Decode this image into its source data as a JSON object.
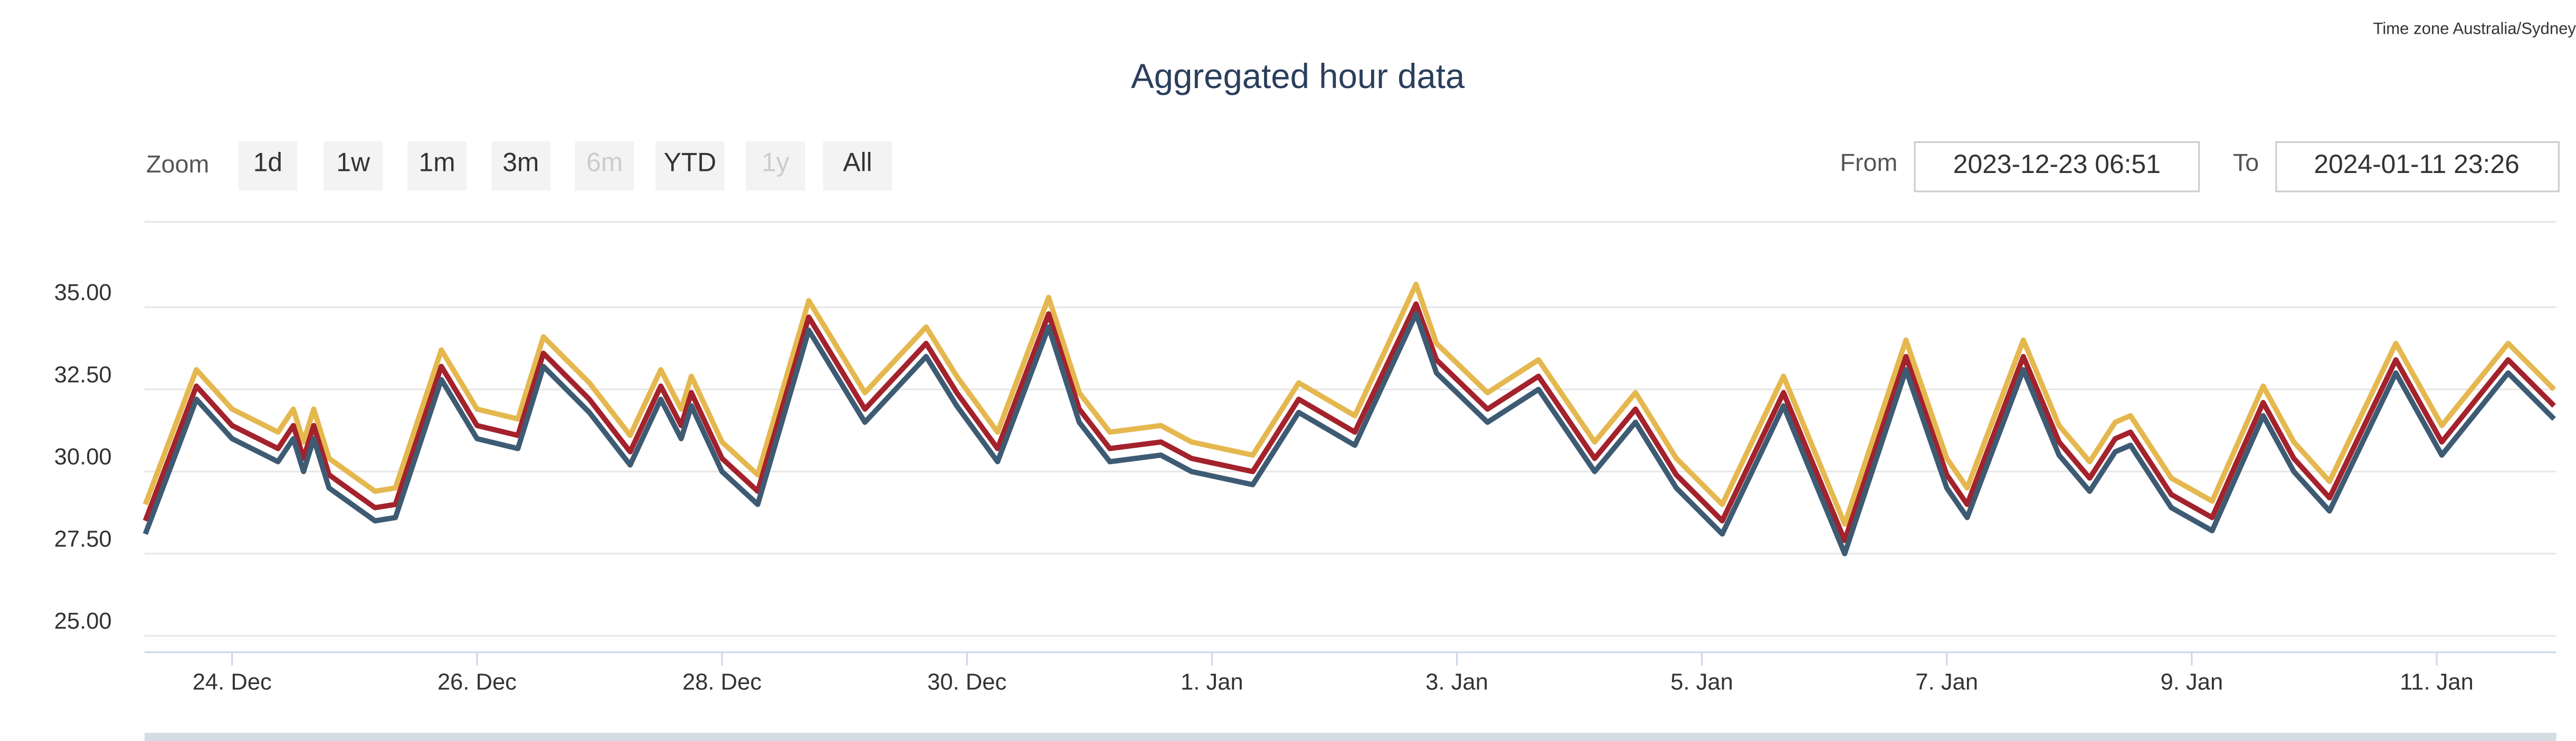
{
  "chart_data": {
    "type": "line",
    "timezone": "Time zone Australia/Sydney",
    "title": "Aggregated hour data",
    "zoom_label": "Zoom",
    "zoom_buttons": [
      {
        "label": "1d",
        "enabled": true
      },
      {
        "label": "1w",
        "enabled": true
      },
      {
        "label": "1m",
        "enabled": true
      },
      {
        "label": "3m",
        "enabled": true
      },
      {
        "label": "6m",
        "enabled": false
      },
      {
        "label": "YTD",
        "enabled": true
      },
      {
        "label": "1y",
        "enabled": false
      },
      {
        "label": "All",
        "enabled": true
      }
    ],
    "from_label": "From",
    "from_value": "2023-12-23 06:51",
    "to_label": "To",
    "to_value": "2024-01-11 23:26",
    "x": [
      "2023-12-23 07:00",
      "2023-12-23 17:00",
      "2023-12-24 00:00",
      "2023-12-24 09:00",
      "2023-12-24 12:00",
      "2023-12-24 14:00",
      "2023-12-24 16:00",
      "2023-12-24 19:00",
      "2023-12-25 04:00",
      "2023-12-25 08:00",
      "2023-12-25 17:00",
      "2023-12-26 00:00",
      "2023-12-26 08:00",
      "2023-12-26 13:00",
      "2023-12-26 22:00",
      "2023-12-27 06:00",
      "2023-12-27 12:00",
      "2023-12-27 16:00",
      "2023-12-27 18:00",
      "2023-12-28 00:00",
      "2023-12-28 07:00",
      "2023-12-28 17:00",
      "2023-12-29 04:00",
      "2023-12-29 16:00",
      "2023-12-29 22:00",
      "2023-12-30 06:00",
      "2023-12-30 16:00",
      "2023-12-30 22:00",
      "2023-12-31 04:00",
      "2023-12-31 14:00",
      "2023-12-31 20:00",
      "2024-01-01 08:00",
      "2024-01-01 17:00",
      "2024-01-02 04:00",
      "2024-01-02 16:00",
      "2024-01-02 20:00",
      "2024-01-03 06:00",
      "2024-01-03 16:00",
      "2024-01-04 03:00",
      "2024-01-04 11:00",
      "2024-01-04 19:00",
      "2024-01-05 04:00",
      "2024-01-05 16:00",
      "2024-01-06 00:00",
      "2024-01-06 04:00",
      "2024-01-06 16:00",
      "2024-01-07 00:00",
      "2024-01-07 04:00",
      "2024-01-07 15:00",
      "2024-01-07 22:00",
      "2024-01-08 04:00",
      "2024-01-08 09:00",
      "2024-01-08 12:00",
      "2024-01-08 20:00",
      "2024-01-09 04:00",
      "2024-01-09 14:00",
      "2024-01-09 20:00",
      "2024-01-10 03:00",
      "2024-01-10 16:00",
      "2024-01-11 01:00",
      "2024-01-11 14:00",
      "2024-01-11 23:00"
    ],
    "series": [
      {
        "color": "#e5b84f",
        "values": [
          29.0,
          33.1,
          31.9,
          31.2,
          31.9,
          30.9,
          31.9,
          30.4,
          29.4,
          29.5,
          33.7,
          31.9,
          31.6,
          34.1,
          32.7,
          31.1,
          33.1,
          31.9,
          32.9,
          30.9,
          29.9,
          35.2,
          32.4,
          34.4,
          32.9,
          31.2,
          35.3,
          32.4,
          31.2,
          31.4,
          30.9,
          30.5,
          32.7,
          31.7,
          35.7,
          33.9,
          32.4,
          33.4,
          30.9,
          32.4,
          30.4,
          29.0,
          32.9,
          29.9,
          28.4,
          34.0,
          30.4,
          29.5,
          34.0,
          31.4,
          30.3,
          31.5,
          31.7,
          29.8,
          29.1,
          32.6,
          30.9,
          29.7,
          33.9,
          31.4,
          33.9,
          32.5
        ]
      },
      {
        "color": "#a3222c",
        "values": [
          28.5,
          32.6,
          31.4,
          30.7,
          31.4,
          30.4,
          31.4,
          29.9,
          28.9,
          29.0,
          33.2,
          31.4,
          31.1,
          33.6,
          32.2,
          30.6,
          32.6,
          31.4,
          32.4,
          30.4,
          29.4,
          34.7,
          31.9,
          33.9,
          32.4,
          30.7,
          34.8,
          31.9,
          30.7,
          30.9,
          30.4,
          30.0,
          32.2,
          31.2,
          35.1,
          33.4,
          31.9,
          32.9,
          30.4,
          31.9,
          29.9,
          28.5,
          32.4,
          29.4,
          27.9,
          33.5,
          29.9,
          29.0,
          33.5,
          30.9,
          29.8,
          31.0,
          31.2,
          29.3,
          28.6,
          32.1,
          30.4,
          29.2,
          33.4,
          30.9,
          33.4,
          32.0
        ]
      },
      {
        "color": "#3e5b74",
        "values": [
          28.1,
          32.2,
          31.0,
          30.3,
          31.0,
          30.0,
          31.0,
          29.5,
          28.5,
          28.6,
          32.8,
          31.0,
          30.7,
          33.2,
          31.8,
          30.2,
          32.2,
          31.0,
          32.0,
          30.0,
          29.0,
          34.3,
          31.5,
          33.5,
          32.0,
          30.3,
          34.4,
          31.5,
          30.3,
          30.5,
          30.0,
          29.6,
          31.8,
          30.8,
          34.8,
          33.0,
          31.5,
          32.5,
          30.0,
          31.5,
          29.5,
          28.1,
          32.0,
          29.0,
          27.5,
          33.1,
          29.5,
          28.6,
          33.1,
          30.5,
          29.4,
          30.6,
          30.8,
          28.9,
          28.2,
          31.7,
          30.0,
          28.8,
          33.0,
          30.5,
          33.0,
          31.6
        ]
      }
    ],
    "xlim": [
      "2023-12-23 06:51",
      "2024-01-11 23:26"
    ],
    "xticks": [
      {
        "value": "2023-12-24 00:00",
        "label": "24. Dec"
      },
      {
        "value": "2023-12-26 00:00",
        "label": "26. Dec"
      },
      {
        "value": "2023-12-28 00:00",
        "label": "28. Dec"
      },
      {
        "value": "2023-12-30 00:00",
        "label": "30. Dec"
      },
      {
        "value": "2024-01-01 00:00",
        "label": "1. Jan"
      },
      {
        "value": "2024-01-03 00:00",
        "label": "3. Jan"
      },
      {
        "value": "2024-01-05 00:00",
        "label": "5. Jan"
      },
      {
        "value": "2024-01-07 00:00",
        "label": "7. Jan"
      },
      {
        "value": "2024-01-09 00:00",
        "label": "9. Jan"
      },
      {
        "value": "2024-01-11 00:00",
        "label": "11. Jan"
      }
    ],
    "ylim": [
      24.5,
      37.6
    ],
    "yticks": [
      {
        "value": 25,
        "label": "25.00"
      },
      {
        "value": 27.5,
        "label": "27.50"
      },
      {
        "value": 30,
        "label": "30.00"
      },
      {
        "value": 32.5,
        "label": "32.50"
      },
      {
        "value": 35,
        "label": "35.00"
      }
    ],
    "grid": true
  }
}
